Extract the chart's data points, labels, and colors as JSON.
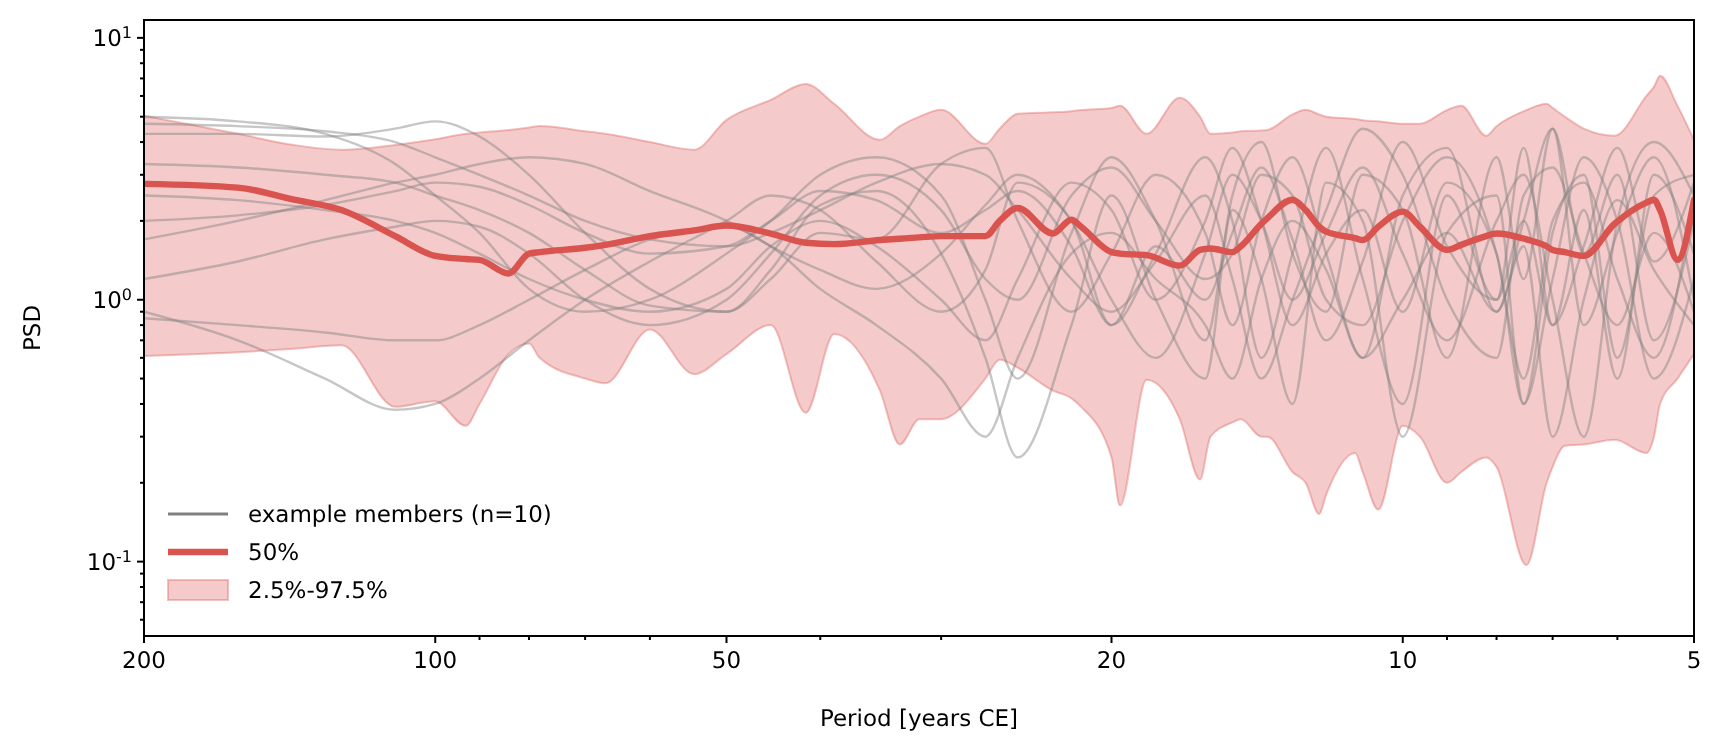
{
  "chart_data": {
    "type": "line",
    "xlabel": "Period [years CE]",
    "ylabel": "PSD",
    "log": "xy",
    "grid": false,
    "legend": "lower left",
    "xlim": [
      200,
      5
    ],
    "ylim": [
      0.052,
      11.7
    ],
    "annotations": [
      "2.5%-97.5%"
    ],
    "xticks": [
      200,
      100,
      50,
      20,
      10,
      5,
      {
        "value": 90,
        "label": null
      },
      {
        "value": 80,
        "label": null
      },
      {
        "value": 70,
        "label": null
      },
      {
        "value": 60,
        "label": null
      },
      {
        "value": 40,
        "label": null
      },
      {
        "value": 30,
        "label": null
      },
      {
        "value": 9,
        "label": null
      },
      {
        "value": 8,
        "label": null
      },
      {
        "value": 7,
        "label": null
      },
      {
        "value": 6,
        "label": null
      }
    ],
    "yticks": [
      {
        "value": 0.1,
        "label": "10$^{-1}$"
      },
      {
        "value": 1,
        "label": "10$^{0}$"
      },
      {
        "value": 10,
        "label": "10$^{1}$"
      },
      {
        "value": 0.06,
        "label": null
      },
      {
        "value": 0.07,
        "label": null
      },
      {
        "value": 0.08,
        "label": null
      },
      {
        "value": 0.09,
        "label": null
      },
      {
        "value": 0.2,
        "label": null
      },
      {
        "value": 0.3,
        "label": null
      },
      {
        "value": 0.4,
        "label": null
      },
      {
        "value": 0.5,
        "label": null
      },
      {
        "value": 0.6,
        "label": null
      },
      {
        "value": 0.7,
        "label": null
      },
      {
        "value": 0.8,
        "label": null
      },
      {
        "value": 0.9,
        "label": null
      },
      {
        "value": 2,
        "label": null
      },
      {
        "value": 3,
        "label": null
      },
      {
        "value": 4,
        "label": null
      },
      {
        "value": 5,
        "label": null
      },
      {
        "value": 6,
        "label": null
      },
      {
        "value": 7,
        "label": null
      },
      {
        "value": 8,
        "label": null
      },
      {
        "value": 9,
        "label": null
      }
    ],
    "x": [
      200,
      160,
      130,
      110,
      100,
      90,
      80,
      70,
      60,
      50,
      45,
      40,
      35,
      30,
      27,
      25,
      22,
      20,
      18,
      16,
      15,
      14,
      13,
      12,
      11,
      10,
      9,
      8,
      7.5,
      7,
      6.5,
      6,
      5.5,
      5
    ],
    "series": [
      {
        "name": "example members (n=10)",
        "color": "#808080",
        "values": [
          0.9,
          0.7,
          0.5,
          0.38,
          0.4,
          0.5,
          0.7,
          1.0,
          1.4,
          2.0,
          2.5,
          2.2,
          1.4,
          0.9,
          1.3,
          2.8,
          2.0,
          0.8,
          1.5,
          3.5,
          2.0,
          0.6,
          1.5,
          3.8,
          1.2,
          0.4,
          2.5,
          1.0,
          3.8,
          0.8,
          2.2,
          0.5,
          3.0,
          1.5
        ]
      },
      {
        "color": "#808080",
        "values": [
          5.0,
          4.8,
          4.3,
          3.3,
          2.5,
          1.8,
          1.1,
          0.9,
          1.0,
          1.5,
          2.0,
          3.0,
          3.5,
          2.5,
          1.0,
          0.5,
          1.8,
          3.5,
          2.0,
          0.7,
          2.5,
          4.0,
          1.5,
          0.9,
          3.0,
          2.2,
          0.6,
          3.5,
          1.2,
          4.5,
          1.5,
          3.0,
          0.7,
          2.0
        ]
      },
      {
        "color": "#808080",
        "values": [
          4.3,
          4.3,
          4.2,
          4.5,
          4.8,
          4.2,
          3.0,
          1.8,
          1.1,
          0.9,
          1.2,
          1.8,
          1.7,
          3.3,
          3.8,
          2.0,
          0.9,
          1.5,
          3.0,
          1.8,
          0.8,
          2.0,
          3.5,
          1.5,
          0.6,
          2.5,
          3.8,
          0.9,
          2.0,
          4.5,
          0.8,
          1.8,
          3.5,
          1.0
        ]
      },
      {
        "color": "#808080",
        "values": [
          3.3,
          3.2,
          3.0,
          2.8,
          2.5,
          2.2,
          1.8,
          1.3,
          0.95,
          0.9,
          1.3,
          2.3,
          2.6,
          1.5,
          0.6,
          0.25,
          0.8,
          2.5,
          1.0,
          0.5,
          2.2,
          1.2,
          0.4,
          2.8,
          2.0,
          0.3,
          1.8,
          2.5,
          0.4,
          1.8,
          3.0,
          0.6,
          2.5,
          3.0
        ]
      },
      {
        "color": "#808080",
        "values": [
          1.7,
          2.0,
          2.4,
          2.8,
          3.0,
          3.3,
          3.5,
          3.3,
          2.6,
          2.0,
          1.6,
          1.3,
          1.1,
          1.5,
          2.3,
          3.0,
          2.0,
          1.0,
          0.6,
          1.5,
          3.0,
          2.0,
          1.0,
          1.8,
          3.2,
          1.5,
          0.7,
          2.0,
          3.0,
          1.0,
          0.3,
          2.0,
          4.0,
          2.5
        ]
      },
      {
        "color": "#808080",
        "values": [
          1.2,
          1.4,
          1.7,
          1.9,
          2.0,
          1.9,
          1.5,
          1.0,
          0.8,
          1.0,
          1.5,
          2.5,
          3.0,
          2.2,
          1.2,
          1.0,
          2.5,
          3.2,
          2.0,
          1.2,
          1.5,
          3.0,
          2.5,
          1.0,
          0.8,
          2.0,
          3.5,
          1.5,
          0.5,
          2.0,
          2.8,
          1.2,
          0.6,
          2.5
        ]
      },
      {
        "color": "#808080",
        "values": [
          2.5,
          2.4,
          2.2,
          2.0,
          1.8,
          1.5,
          1.2,
          1.0,
          0.9,
          1.1,
          1.6,
          2.0,
          1.6,
          1.0,
          0.7,
          1.2,
          2.8,
          2.2,
          1.0,
          2.0,
          3.8,
          2.0,
          0.8,
          1.5,
          2.2,
          0.9,
          2.8,
          1.5,
          0.4,
          1.2,
          3.5,
          2.0,
          0.5,
          1.2
        ]
      },
      {
        "color": "#808080",
        "values": [
          4.7,
          4.6,
          4.4,
          4.0,
          3.5,
          3.0,
          2.5,
          2.0,
          1.7,
          1.6,
          1.8,
          2.2,
          2.8,
          3.3,
          3.0,
          2.2,
          1.2,
          0.9,
          1.4,
          2.5,
          1.2,
          0.5,
          1.0,
          2.2,
          4.5,
          3.0,
          1.0,
          0.6,
          2.5,
          3.2,
          1.5,
          0.8,
          1.8,
          0.9
        ]
      },
      {
        "color": "#808080",
        "values": [
          0.85,
          0.8,
          0.75,
          0.7,
          0.7,
          0.8,
          1.0,
          1.3,
          1.7,
          1.9,
          1.6,
          1.1,
          0.8,
          0.5,
          0.3,
          0.6,
          1.5,
          1.8,
          1.2,
          0.8,
          0.5,
          1.2,
          2.0,
          1.3,
          0.6,
          1.0,
          1.8,
          0.9,
          1.6,
          0.3,
          1.0,
          2.4,
          1.3,
          0.8
        ]
      },
      {
        "color": "#808080",
        "values": [
          2.0,
          2.1,
          2.3,
          2.6,
          2.8,
          2.7,
          2.3,
          1.8,
          1.5,
          1.6,
          2.0,
          2.6,
          2.4,
          1.8,
          2.2,
          2.6,
          1.6,
          0.8,
          1.6,
          1.0,
          1.8,
          3.2,
          1.7,
          0.7,
          1.4,
          4.0,
          1.6,
          1.0,
          2.0,
          0.8,
          1.6,
          3.8,
          1.4,
          2.8
        ]
      },
      {
        "name": "50%",
        "color": "#d9534f",
        "x": [
          200,
          160,
          140,
          125,
          110,
          100,
          93,
          90,
          84,
          80,
          78,
          70,
          66.7,
          60,
          54,
          50,
          45,
          41.4,
          38.7,
          34.7,
          33.1,
          31.6,
          30,
          27,
          26.1,
          25,
          23,
          22,
          21.5,
          20,
          19.6,
          18.4,
          17,
          16.2,
          15.8,
          15,
          14.7,
          14,
          13.8,
          13,
          12.6,
          12.2,
          12,
          11.2,
          11,
          10.6,
          10,
          9.6,
          9,
          8.7,
          8.2,
          8,
          7.45,
          7.1,
          7,
          6.8,
          6.5,
          6.04,
          5.6,
          5.5,
          5.42,
          5.2,
          5
        ],
        "values": [
          2.77,
          2.68,
          2.41,
          2.2,
          1.75,
          1.47,
          1.43,
          1.42,
          1.26,
          1.5,
          1.52,
          1.58,
          1.62,
          1.75,
          1.84,
          1.92,
          1.79,
          1.65,
          1.63,
          1.69,
          1.71,
          1.73,
          1.75,
          1.75,
          2.0,
          2.24,
          1.79,
          2.02,
          1.9,
          1.52,
          1.5,
          1.48,
          1.35,
          1.55,
          1.57,
          1.52,
          1.6,
          1.95,
          2.05,
          2.41,
          2.2,
          1.9,
          1.82,
          1.72,
          1.69,
          1.9,
          2.17,
          1.9,
          1.55,
          1.62,
          1.75,
          1.79,
          1.7,
          1.6,
          1.55,
          1.52,
          1.47,
          1.95,
          2.35,
          2.41,
          2.2,
          1.42,
          2.41
        ],
        "lower": [
          0.61,
          0.63,
          0.65,
          0.67,
          0.39,
          0.41,
          0.33,
          0.4,
          0.62,
          0.68,
          0.6,
          0.5,
          0.48,
          0.77,
          0.52,
          0.62,
          0.8,
          0.37,
          0.74,
          0.45,
          0.28,
          0.35,
          0.35,
          0.5,
          0.59,
          0.55,
          0.45,
          0.42,
          0.39,
          0.25,
          0.164,
          0.495,
          0.35,
          0.206,
          0.3,
          0.34,
          0.35,
          0.3,
          0.3,
          0.22,
          0.2,
          0.152,
          0.18,
          0.26,
          0.22,
          0.158,
          0.33,
          0.3,
          0.2,
          0.22,
          0.25,
          0.23,
          0.097,
          0.2,
          0.23,
          0.277,
          0.28,
          0.292,
          0.26,
          0.3,
          0.4,
          0.5,
          0.62
        ],
        "upper": [
          5.04,
          4.3,
          3.9,
          3.74,
          3.9,
          4.1,
          4.3,
          4.35,
          4.45,
          4.55,
          4.61,
          4.4,
          4.3,
          4.0,
          3.74,
          4.86,
          5.8,
          6.67,
          5.6,
          4.08,
          4.6,
          5.0,
          5.31,
          3.94,
          4.5,
          5.13,
          5.2,
          5.25,
          5.3,
          5.4,
          5.5,
          4.3,
          5.9,
          5.0,
          4.3,
          4.35,
          4.4,
          4.43,
          4.45,
          5.1,
          5.31,
          5.1,
          5.0,
          4.9,
          4.85,
          4.8,
          4.7,
          4.7,
          5.3,
          5.5,
          4.23,
          4.6,
          5.3,
          5.6,
          5.4,
          5.0,
          4.5,
          4.23,
          6.0,
          6.5,
          7.16,
          5.5,
          4.08
        ]
      }
    ]
  }
}
